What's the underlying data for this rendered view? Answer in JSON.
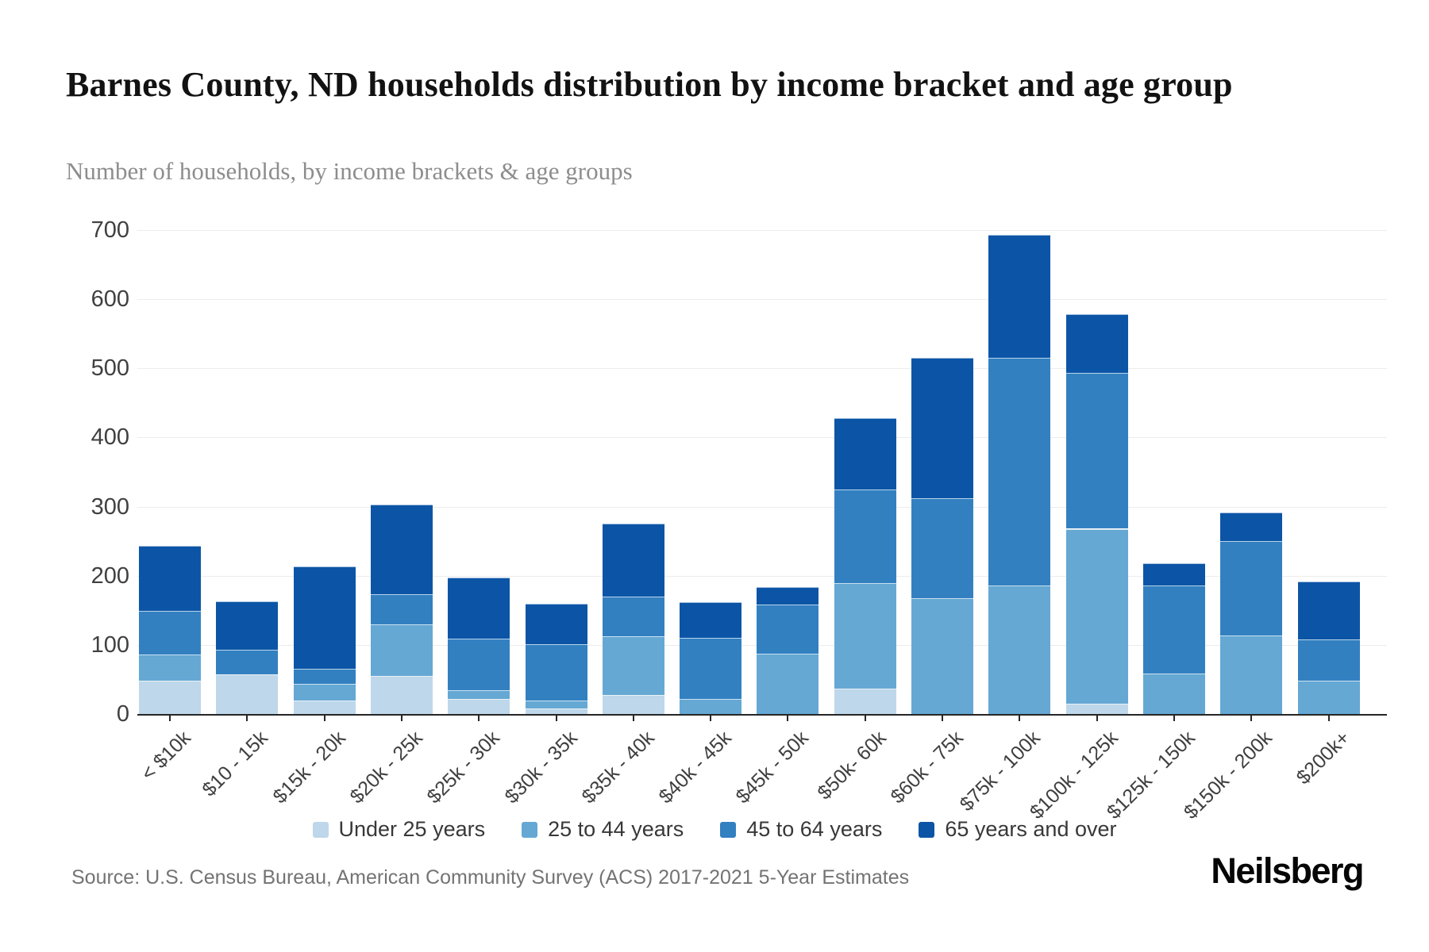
{
  "page": {
    "title": "Barnes County, ND households distribution by income bracket and age group",
    "subtitle": "Number of households, by income brackets & age groups",
    "source": "Source: U.S. Census Bureau, American Community Survey (ACS) 2017-2021 5-Year Estimates",
    "brand": "Neilsberg"
  },
  "chart_data": {
    "type": "bar",
    "stacked": true,
    "title": "Barnes County, ND households distribution by income bracket and age group",
    "subtitle": "Number of households, by income brackets & age groups",
    "xlabel": "",
    "ylabel": "Number of households",
    "ylim": [
      0,
      700
    ],
    "y_ticks": [
      0,
      100,
      200,
      300,
      400,
      500,
      600,
      700
    ],
    "grid": true,
    "legend_position": "bottom",
    "categories": [
      "< $10k",
      "$10 - 15k",
      "$15k - 20k",
      "$20k - 25k",
      "$25k - 30k",
      "$30k - 35k",
      "$35k - 40k",
      "$40k - 45k",
      "$45k - 50k",
      "$50k- 60k",
      "$60k - 75k",
      "$75k - 100k",
      "$100k - 125k",
      "$125k - 150k",
      "$150k - 200k",
      "$200k+"
    ],
    "series": [
      {
        "name": "Under 25 years",
        "color": "#bed7ea",
        "values": [
          48,
          57,
          19,
          55,
          22,
          8,
          28,
          0,
          0,
          37,
          0,
          0,
          15,
          0,
          0,
          0
        ]
      },
      {
        "name": "25 to 44 years",
        "color": "#65a8d4",
        "values": [
          38,
          0,
          25,
          75,
          12,
          12,
          84,
          22,
          87,
          152,
          168,
          186,
          253,
          59,
          114,
          48
        ]
      },
      {
        "name": "45 to 64 years",
        "color": "#3380c1",
        "values": [
          63,
          36,
          21,
          43,
          75,
          81,
          58,
          88,
          71,
          136,
          144,
          329,
          225,
          127,
          136,
          60
        ]
      },
      {
        "name": "65 years and over",
        "color": "#0c55a6",
        "values": [
          94,
          70,
          149,
          130,
          88,
          58,
          105,
          52,
          26,
          103,
          203,
          178,
          85,
          32,
          41,
          84
        ]
      }
    ]
  }
}
